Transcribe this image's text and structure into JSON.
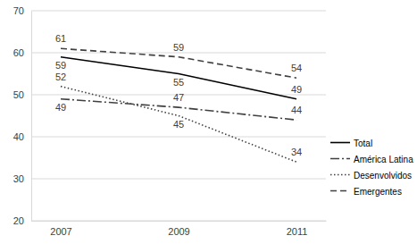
{
  "chart_data": {
    "type": "line",
    "categories": [
      "2007",
      "2009",
      "2011"
    ],
    "series": [
      {
        "name": "Total",
        "color": "#000000",
        "line_style": "solid",
        "values": [
          59,
          55,
          49
        ]
      },
      {
        "name": "América Latina",
        "color": "#404040",
        "line_style": "dashdot",
        "values": [
          49,
          47,
          44
        ]
      },
      {
        "name": "Desenvolvidos",
        "color": "#404040",
        "line_style": "dotted",
        "values": [
          52,
          45,
          34
        ]
      },
      {
        "name": "Emergentes",
        "color": "#404040",
        "line_style": "dashed",
        "values": [
          61,
          59,
          54
        ]
      }
    ],
    "ylim": [
      20,
      70
    ],
    "yticks": [
      20,
      30,
      40,
      50,
      60,
      70
    ],
    "grid": true,
    "legend": "right",
    "data_labels": true
  }
}
